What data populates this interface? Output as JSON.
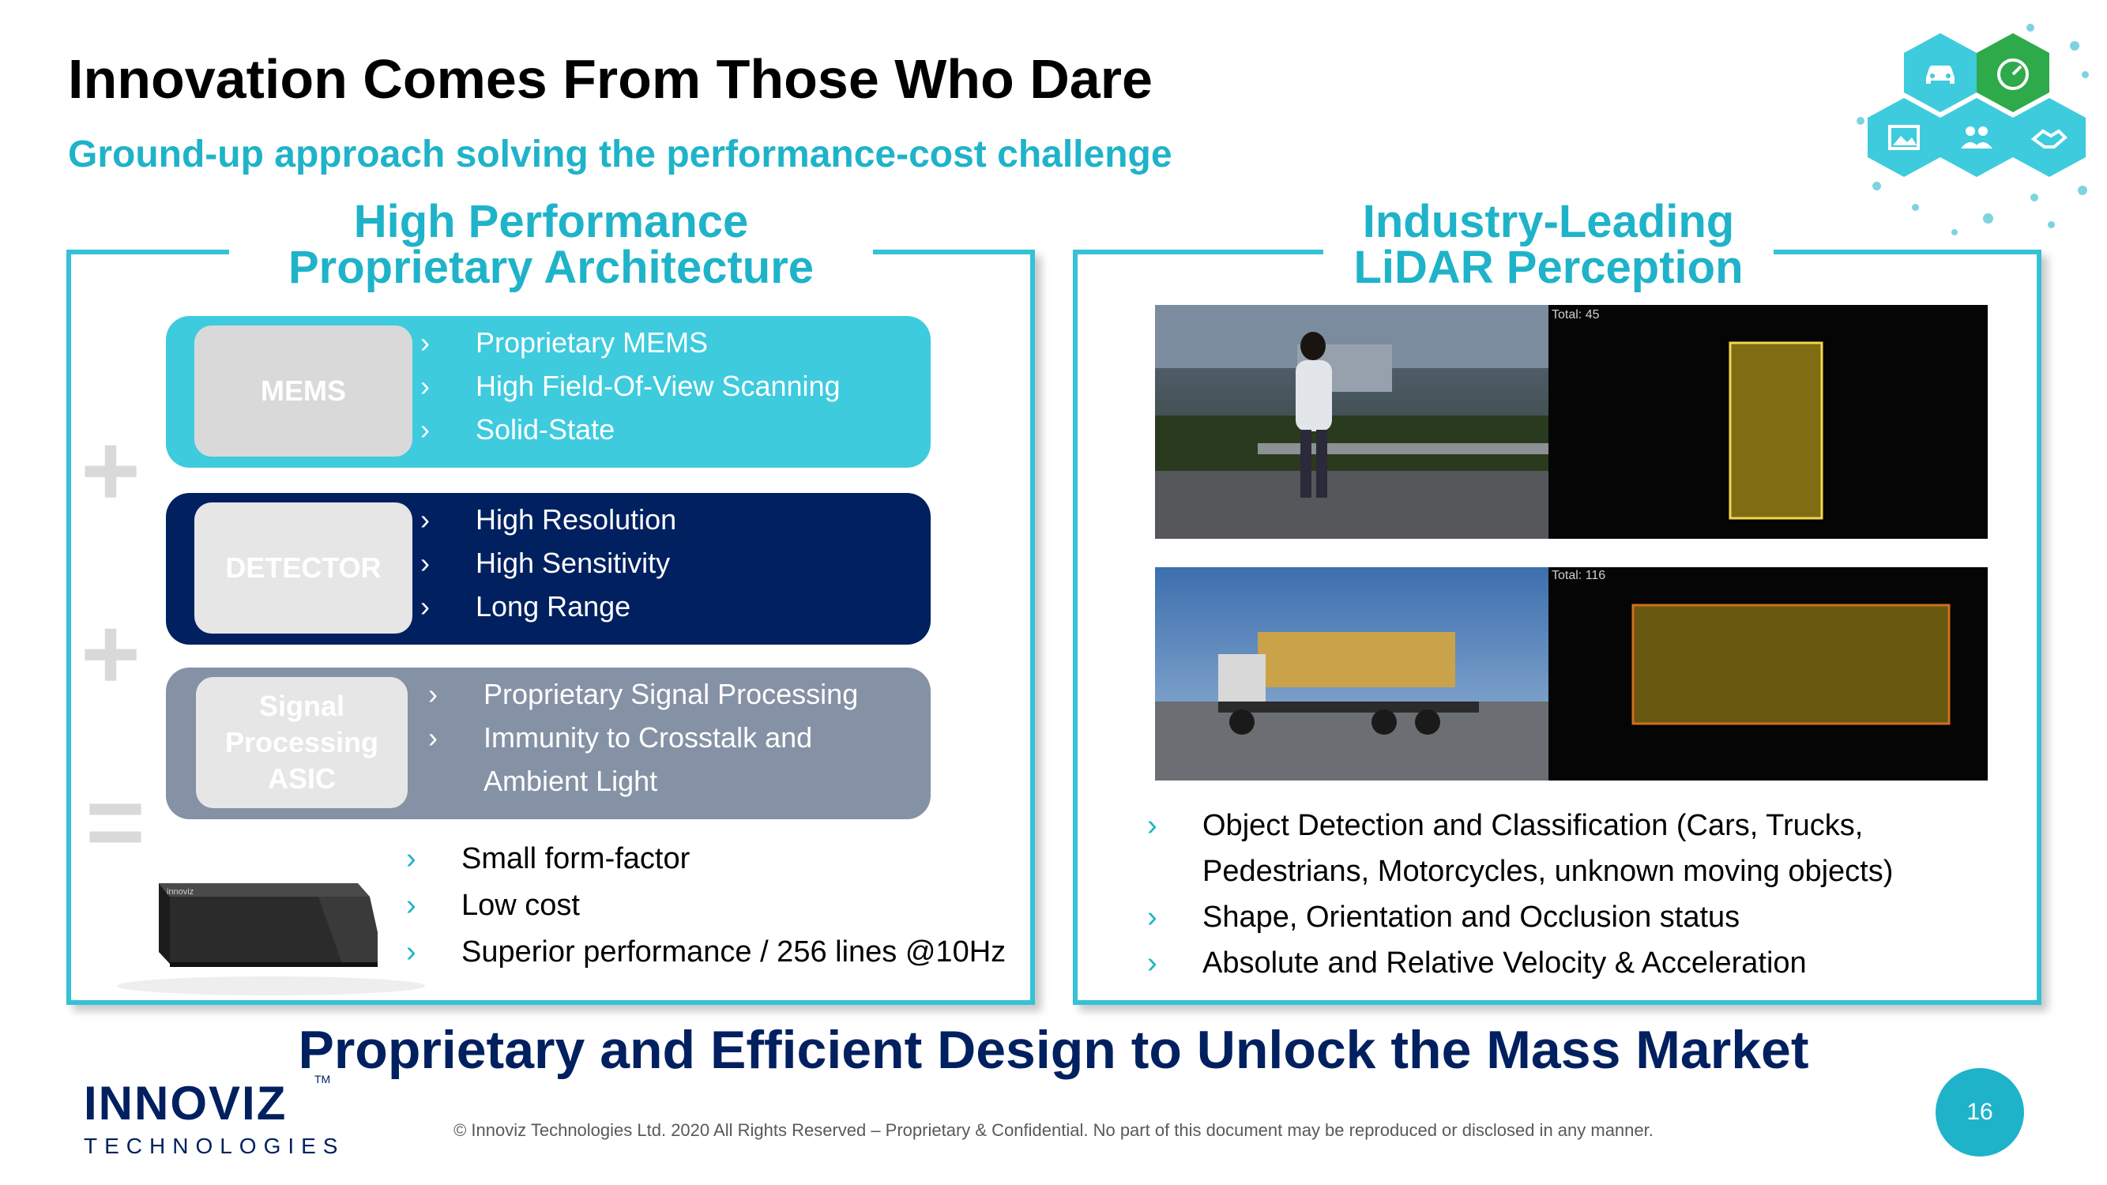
{
  "header": {
    "title": "Innovation Comes From Those Who Dare",
    "subtitle": "Ground-up approach solving the performance-cost challenge"
  },
  "left_panel": {
    "title_line1": "High Performance",
    "title_line2": "Proprietary Architecture",
    "blocks": [
      {
        "label": "MEMS",
        "items": [
          "Proprietary MEMS",
          "High Field-Of-View Scanning",
          "Solid-State"
        ]
      },
      {
        "label": "DETECTOR",
        "items": [
          "High Resolution",
          "High Sensitivity",
          "Long Range"
        ]
      },
      {
        "label_lines": [
          "Signal",
          "Processing",
          "ASIC"
        ],
        "items": [
          "Proprietary Signal Processing",
          "Immunity to Crosstalk and",
          "Ambient Light"
        ]
      }
    ],
    "symbols": [
      "+",
      "+",
      "="
    ],
    "device_brand": "innoviz",
    "product_points": [
      "Small form-factor",
      "Low cost",
      "Superior performance / 256 lines @10Hz"
    ]
  },
  "right_panel": {
    "title_line1": "Industry-Leading",
    "title_line2": "LiDAR Perception",
    "image1_counter": "Total: 45",
    "image2_counter": "Total: 116",
    "points": [
      "Object Detection and Classification (Cars, Trucks,",
      "Pedestrians, Motorcycles, unknown moving objects)",
      "Shape, Orientation and Occlusion status",
      "Absolute and Relative Velocity & Acceleration"
    ]
  },
  "tagline": "Proprietary and Efficient Design to Unlock the Mass Market",
  "logo": {
    "main": "INNOVIZ",
    "sub": "TECHNOLOGIES",
    "tm": "TM"
  },
  "footer": "© Innoviz Technologies Ltd. 2020 All Rights Reserved – Proprietary & Confidential. No part of this document may be reproduced or disclosed in any manner.",
  "page_number": "16",
  "colors": {
    "accent": "#1fb3c9",
    "navy": "#002060",
    "mems": "#3ecbde",
    "signal": "#8591a5",
    "hex_green": "#2eaa4a"
  },
  "decor_icons": [
    "car-icon",
    "speedometer-icon",
    "image-icon",
    "people-icon",
    "handshake-icon"
  ]
}
